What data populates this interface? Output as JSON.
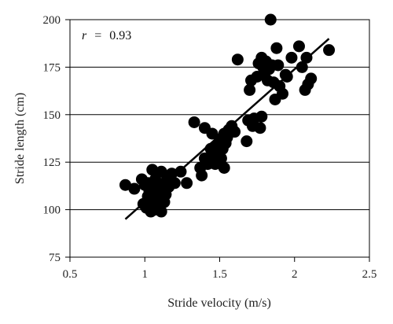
{
  "chart_data": {
    "type": "scatter",
    "title": "",
    "xlabel": "Stride velocity (m/s)",
    "ylabel": "Stride length (cm)",
    "xlim": [
      0.5,
      2.5
    ],
    "ylim": [
      75,
      200
    ],
    "xticks": [
      0.5,
      1,
      1.5,
      2,
      2.5
    ],
    "yticks": [
      75,
      100,
      125,
      150,
      175,
      200
    ],
    "xtick_labels": [
      "0.5",
      "1",
      "1.5",
      "2",
      "2.5"
    ],
    "ytick_labels": [
      "75",
      "100",
      "125",
      "150",
      "175",
      "200"
    ],
    "grid": "horizontal",
    "legend": "none",
    "annotation": {
      "symbol": "r",
      "equals": "=",
      "value": "0.93"
    },
    "marker_color": "#000000",
    "trendline": {
      "x": [
        0.87,
        2.23
      ],
      "y": [
        95,
        190
      ]
    },
    "points": [
      {
        "x": 0.87,
        "y": 113
      },
      {
        "x": 0.93,
        "y": 111
      },
      {
        "x": 0.98,
        "y": 116
      },
      {
        "x": 1.0,
        "y": 113
      },
      {
        "x": 1.02,
        "y": 114
      },
      {
        "x": 1.03,
        "y": 110
      },
      {
        "x": 1.04,
        "y": 108
      },
      {
        "x": 1.05,
        "y": 121
      },
      {
        "x": 1.06,
        "y": 112
      },
      {
        "x": 1.07,
        "y": 116
      },
      {
        "x": 1.08,
        "y": 109
      },
      {
        "x": 1.09,
        "y": 113
      },
      {
        "x": 1.1,
        "y": 106
      },
      {
        "x": 1.11,
        "y": 120
      },
      {
        "x": 1.12,
        "y": 111
      },
      {
        "x": 1.13,
        "y": 114
      },
      {
        "x": 1.14,
        "y": 108
      },
      {
        "x": 1.15,
        "y": 117
      },
      {
        "x": 1.16,
        "y": 112
      },
      {
        "x": 1.18,
        "y": 119
      },
      {
        "x": 1.2,
        "y": 114
      },
      {
        "x": 1.24,
        "y": 120
      },
      {
        "x": 0.99,
        "y": 103
      },
      {
        "x": 1.01,
        "y": 101
      },
      {
        "x": 1.04,
        "y": 99
      },
      {
        "x": 1.07,
        "y": 100
      },
      {
        "x": 1.09,
        "y": 102
      },
      {
        "x": 1.11,
        "y": 99
      },
      {
        "x": 1.13,
        "y": 104
      },
      {
        "x": 1.05,
        "y": 105
      },
      {
        "x": 1.02,
        "y": 107
      },
      {
        "x": 1.28,
        "y": 114
      },
      {
        "x": 1.33,
        "y": 146
      },
      {
        "x": 1.37,
        "y": 122
      },
      {
        "x": 1.38,
        "y": 118
      },
      {
        "x": 1.4,
        "y": 143
      },
      {
        "x": 1.4,
        "y": 127
      },
      {
        "x": 1.42,
        "y": 124
      },
      {
        "x": 1.44,
        "y": 132
      },
      {
        "x": 1.45,
        "y": 140
      },
      {
        "x": 1.46,
        "y": 128
      },
      {
        "x": 1.47,
        "y": 124
      },
      {
        "x": 1.48,
        "y": 134
      },
      {
        "x": 1.49,
        "y": 130
      },
      {
        "x": 1.5,
        "y": 137
      },
      {
        "x": 1.51,
        "y": 127
      },
      {
        "x": 1.52,
        "y": 132
      },
      {
        "x": 1.53,
        "y": 140
      },
      {
        "x": 1.54,
        "y": 135
      },
      {
        "x": 1.55,
        "y": 138
      },
      {
        "x": 1.56,
        "y": 142
      },
      {
        "x": 1.5,
        "y": 126
      },
      {
        "x": 1.53,
        "y": 122
      },
      {
        "x": 1.58,
        "y": 144
      },
      {
        "x": 1.6,
        "y": 141
      },
      {
        "x": 1.62,
        "y": 179
      },
      {
        "x": 1.68,
        "y": 136
      },
      {
        "x": 1.69,
        "y": 147
      },
      {
        "x": 1.7,
        "y": 163
      },
      {
        "x": 1.71,
        "y": 168
      },
      {
        "x": 1.72,
        "y": 144
      },
      {
        "x": 1.73,
        "y": 148
      },
      {
        "x": 1.75,
        "y": 170
      },
      {
        "x": 1.76,
        "y": 177
      },
      {
        "x": 1.77,
        "y": 143
      },
      {
        "x": 1.78,
        "y": 180
      },
      {
        "x": 1.78,
        "y": 149
      },
      {
        "x": 1.79,
        "y": 175
      },
      {
        "x": 1.8,
        "y": 172
      },
      {
        "x": 1.81,
        "y": 178
      },
      {
        "x": 1.82,
        "y": 168
      },
      {
        "x": 1.83,
        "y": 174
      },
      {
        "x": 1.84,
        "y": 200
      },
      {
        "x": 1.85,
        "y": 176
      },
      {
        "x": 1.86,
        "y": 167
      },
      {
        "x": 1.87,
        "y": 158
      },
      {
        "x": 1.88,
        "y": 185
      },
      {
        "x": 1.89,
        "y": 176
      },
      {
        "x": 1.9,
        "y": 165
      },
      {
        "x": 1.92,
        "y": 161
      },
      {
        "x": 1.94,
        "y": 171
      },
      {
        "x": 1.95,
        "y": 170
      },
      {
        "x": 1.98,
        "y": 180
      },
      {
        "x": 2.03,
        "y": 186
      },
      {
        "x": 2.05,
        "y": 175
      },
      {
        "x": 2.07,
        "y": 163
      },
      {
        "x": 2.08,
        "y": 180
      },
      {
        "x": 2.09,
        "y": 166
      },
      {
        "x": 2.11,
        "y": 169
      },
      {
        "x": 2.23,
        "y": 184
      }
    ]
  }
}
